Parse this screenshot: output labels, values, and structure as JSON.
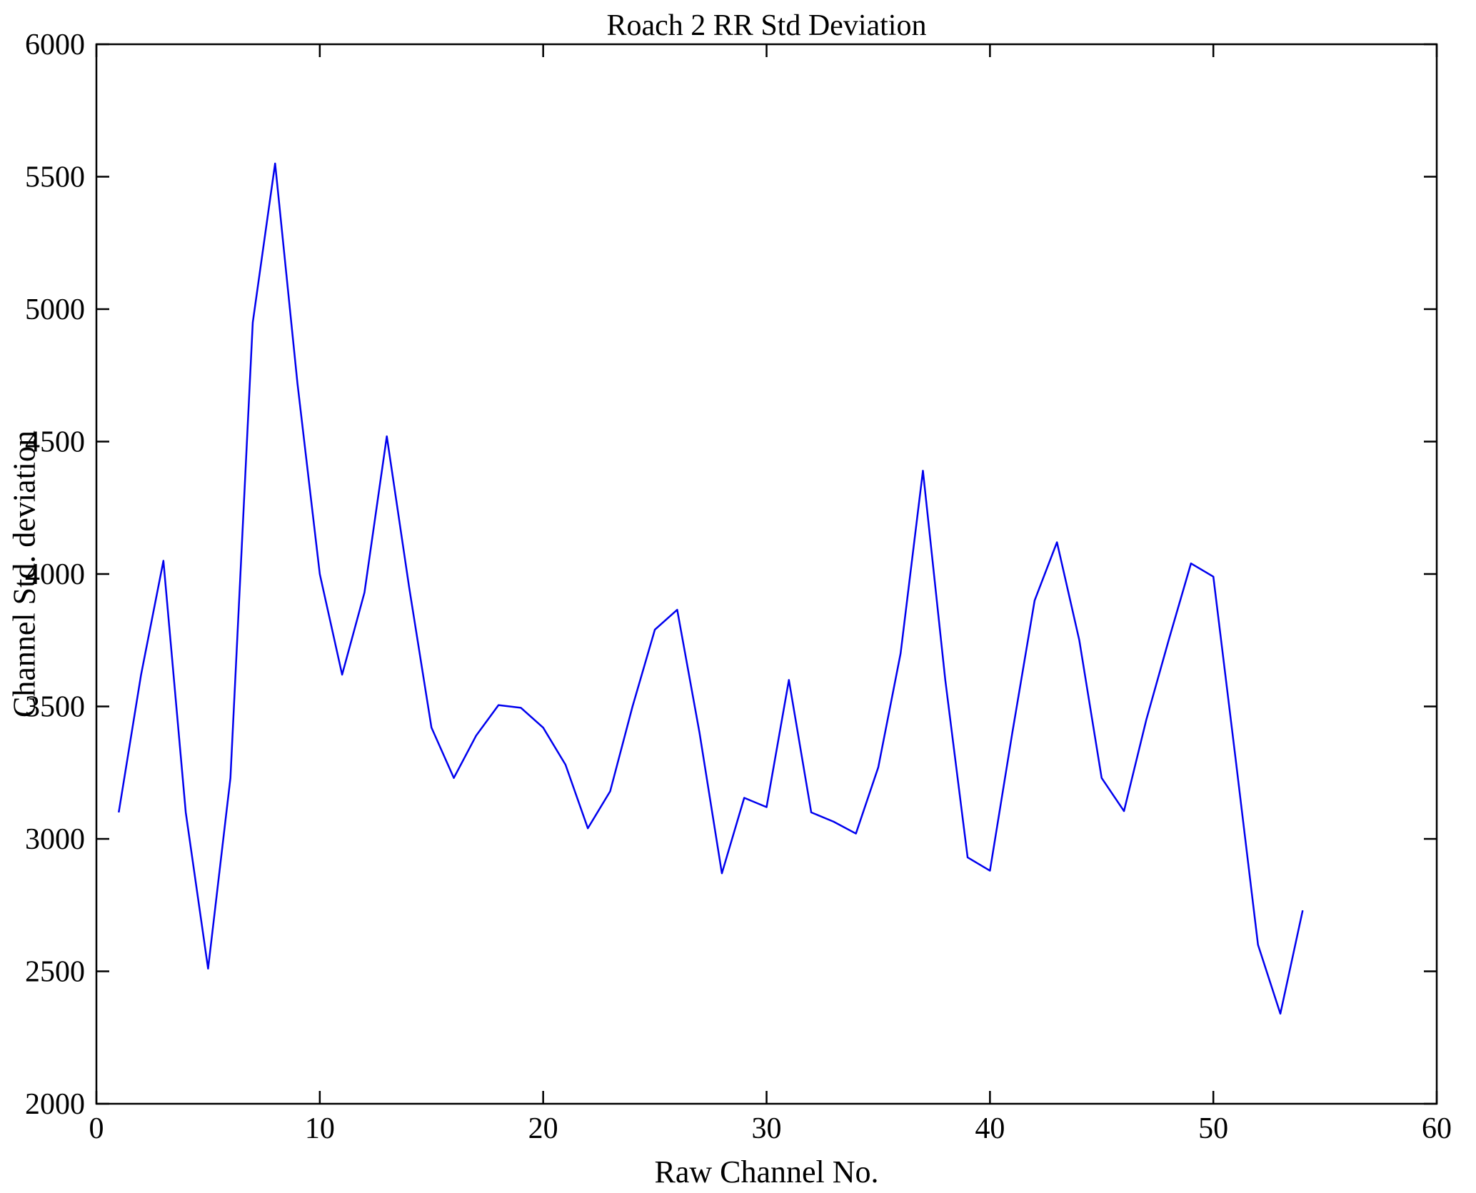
{
  "figure": {
    "background": "#ffffff",
    "axis_color": "#000000"
  },
  "chart_data": {
    "type": "line",
    "title": "Roach 2 RR Std Deviation",
    "xlabel": "Raw Channel No.",
    "ylabel": "Channel Std. deviation",
    "xlim": [
      0,
      60
    ],
    "ylim": [
      2000,
      6000
    ],
    "x_ticks": [
      0,
      10,
      20,
      30,
      40,
      50,
      60
    ],
    "y_ticks": [
      2000,
      2500,
      3000,
      3500,
      4000,
      4500,
      5000,
      5500,
      6000
    ],
    "grid": false,
    "legend_position": "none",
    "line_color": "#0000ee",
    "x": [
      1,
      2,
      3,
      4,
      5,
      6,
      7,
      8,
      9,
      10,
      11,
      12,
      13,
      14,
      15,
      16,
      17,
      18,
      19,
      20,
      21,
      22,
      23,
      24,
      25,
      26,
      27,
      28,
      29,
      30,
      31,
      32,
      33,
      34,
      35,
      36,
      37,
      38,
      39,
      40,
      41,
      42,
      43,
      44,
      45,
      46,
      47,
      48,
      49,
      50,
      51,
      52,
      53,
      54
    ],
    "series": [
      {
        "name": "Channel Std. deviation",
        "values": [
          3100,
          3620,
          4050,
          3100,
          2510,
          3230,
          4950,
          5550,
          4720,
          4000,
          3620,
          3930,
          4520,
          3950,
          3420,
          3230,
          3390,
          3505,
          3495,
          3420,
          3280,
          3040,
          3180,
          3500,
          3790,
          3865,
          3400,
          2870,
          3155,
          3120,
          3600,
          3100,
          3065,
          3020,
          3270,
          3700,
          4390,
          3600,
          2930,
          2880,
          3400,
          3900,
          4120,
          3750,
          3230,
          3105,
          3450,
          3750,
          4040,
          3990,
          3300,
          2600,
          2340,
          2730
        ]
      }
    ]
  }
}
